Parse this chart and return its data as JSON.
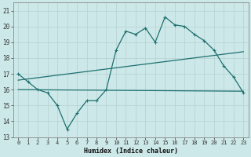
{
  "xlabel": "Humidex (Indice chaleur)",
  "xlim": [
    -0.5,
    23.5
  ],
  "ylim": [
    13,
    21.5
  ],
  "yticks": [
    13,
    14,
    15,
    16,
    17,
    18,
    19,
    20,
    21
  ],
  "xticks": [
    0,
    1,
    2,
    3,
    4,
    5,
    6,
    7,
    8,
    9,
    10,
    11,
    12,
    13,
    14,
    15,
    16,
    17,
    18,
    19,
    20,
    21,
    22,
    23
  ],
  "xtick_labels": [
    "0",
    "1",
    "2",
    "3",
    "4",
    "5",
    "6",
    "7",
    "8",
    "9",
    "10",
    "11",
    "12",
    "13",
    "14",
    "15",
    "16",
    "17",
    "18",
    "19",
    "20",
    "21",
    "22",
    "23"
  ],
  "bg_color": "#cde8e8",
  "grid_color": "#b8d4d4",
  "line_color": "#1e7070",
  "line1_x": [
    0,
    1,
    2,
    3,
    4,
    5,
    6,
    7,
    8,
    9,
    10,
    11,
    12,
    13,
    14,
    15,
    16,
    17,
    18,
    19,
    20,
    21,
    22,
    23
  ],
  "line1_y": [
    17.0,
    16.5,
    16.0,
    15.8,
    15.0,
    13.5,
    14.5,
    15.3,
    15.3,
    16.0,
    18.5,
    19.7,
    19.5,
    19.9,
    19.0,
    20.6,
    20.1,
    20.0,
    19.5,
    19.1,
    18.5,
    17.5,
    16.8,
    15.8
  ],
  "line2_x": [
    0,
    23
  ],
  "line2_y": [
    16.6,
    18.4
  ],
  "line3_x": [
    0,
    23
  ],
  "line3_y": [
    16.0,
    15.9
  ]
}
